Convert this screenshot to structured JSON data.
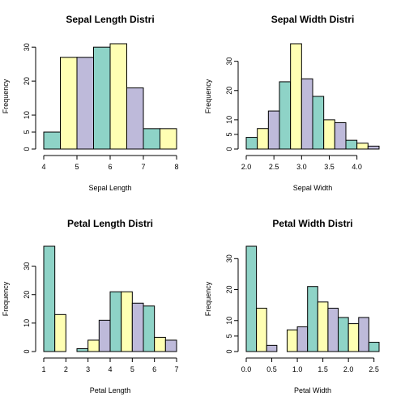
{
  "chart_data": [
    {
      "type": "bar",
      "title": "Sepal Length Distri",
      "xlabel": "Sepal Length",
      "ylabel": "Frequency",
      "bins": [
        [
          4.0,
          4.5
        ],
        [
          4.5,
          5.0
        ],
        [
          5.0,
          5.5
        ],
        [
          5.5,
          6.0
        ],
        [
          6.0,
          6.5
        ],
        [
          6.5,
          7.0
        ],
        [
          7.0,
          7.5
        ],
        [
          7.5,
          8.0
        ]
      ],
      "values": [
        5,
        27,
        27,
        30,
        31,
        18,
        6,
        6
      ],
      "xlim": [
        4,
        8
      ],
      "ylim": [
        0,
        31
      ],
      "xticks": [
        "4",
        "5",
        "6",
        "7",
        "8"
      ],
      "xtick_values": [
        4,
        5,
        6,
        7,
        8
      ],
      "yticks": [
        "0",
        "5",
        "10",
        "20",
        "30"
      ],
      "ytick_values": [
        0,
        5,
        10,
        20,
        30
      ],
      "grid": false
    },
    {
      "type": "bar",
      "title": "Sepal Width Distri",
      "xlabel": "Sepal Width",
      "ylabel": "Frequency",
      "bins": [
        [
          2.0,
          2.2
        ],
        [
          2.2,
          2.4
        ],
        [
          2.4,
          2.6
        ],
        [
          2.6,
          2.8
        ],
        [
          2.8,
          3.0
        ],
        [
          3.0,
          3.2
        ],
        [
          3.2,
          3.4
        ],
        [
          3.4,
          3.6
        ],
        [
          3.6,
          3.8
        ],
        [
          3.8,
          4.0
        ],
        [
          4.0,
          4.2
        ],
        [
          4.2,
          4.4
        ]
      ],
      "values": [
        4,
        7,
        13,
        23,
        36,
        24,
        18,
        10,
        9,
        3,
        2,
        1
      ],
      "xlim": [
        2.0,
        4.4
      ],
      "ylim": [
        0,
        36
      ],
      "xticks": [
        "2.0",
        "2.5",
        "3.0",
        "3.5",
        "4.0"
      ],
      "xtick_values": [
        2.0,
        2.5,
        3.0,
        3.5,
        4.0
      ],
      "yticks": [
        "0",
        "5",
        "10",
        "20",
        "30"
      ],
      "ytick_values": [
        0,
        5,
        10,
        20,
        30
      ],
      "grid": false
    },
    {
      "type": "bar",
      "title": "Petal Length Distri",
      "xlabel": "Petal Length",
      "ylabel": "Frequency",
      "bins": [
        [
          1.0,
          1.5
        ],
        [
          1.5,
          2.0
        ],
        [
          2.0,
          2.5
        ],
        [
          2.5,
          3.0
        ],
        [
          3.0,
          3.5
        ],
        [
          3.5,
          4.0
        ],
        [
          4.0,
          4.5
        ],
        [
          4.5,
          5.0
        ],
        [
          5.0,
          5.5
        ],
        [
          5.5,
          6.0
        ],
        [
          6.0,
          6.5
        ],
        [
          6.5,
          7.0
        ]
      ],
      "values": [
        37,
        13,
        0,
        1,
        4,
        11,
        21,
        21,
        17,
        16,
        5,
        4
      ],
      "xlim": [
        1,
        7
      ],
      "ylim": [
        0,
        37
      ],
      "xticks": [
        "1",
        "2",
        "3",
        "4",
        "5",
        "6",
        "7"
      ],
      "xtick_values": [
        1,
        2,
        3,
        4,
        5,
        6,
        7
      ],
      "yticks": [
        "0",
        "10",
        "20",
        "30"
      ],
      "ytick_values": [
        0,
        10,
        20,
        30
      ],
      "grid": false
    },
    {
      "type": "bar",
      "title": "Petal Width Distri",
      "xlabel": "Petal Width",
      "ylabel": "Frequency",
      "bins": [
        [
          0.0,
          0.2
        ],
        [
          0.2,
          0.4
        ],
        [
          0.4,
          0.6
        ],
        [
          0.6,
          0.8
        ],
        [
          0.8,
          1.0
        ],
        [
          1.0,
          1.2
        ],
        [
          1.2,
          1.4
        ],
        [
          1.4,
          1.6
        ],
        [
          1.6,
          1.8
        ],
        [
          1.8,
          2.0
        ],
        [
          2.0,
          2.2
        ],
        [
          2.2,
          2.4
        ],
        [
          2.4,
          2.6
        ]
      ],
      "values": [
        34,
        14,
        2,
        0,
        7,
        8,
        21,
        16,
        14,
        11,
        9,
        11,
        3
      ],
      "xlim": [
        0.0,
        2.6
      ],
      "ylim": [
        0,
        34
      ],
      "xticks": [
        "0.0",
        "0.5",
        "1.0",
        "1.5",
        "2.0",
        "2.5"
      ],
      "xtick_values": [
        0.0,
        0.5,
        1.0,
        1.5,
        2.0,
        2.5
      ],
      "yticks": [
        "0",
        "5",
        "10",
        "20",
        "30"
      ],
      "ytick_values": [
        0,
        5,
        10,
        20,
        30
      ],
      "grid": false
    }
  ],
  "bar_colors": [
    "#8ed3c7",
    "#ffffb3",
    "#bebada"
  ]
}
